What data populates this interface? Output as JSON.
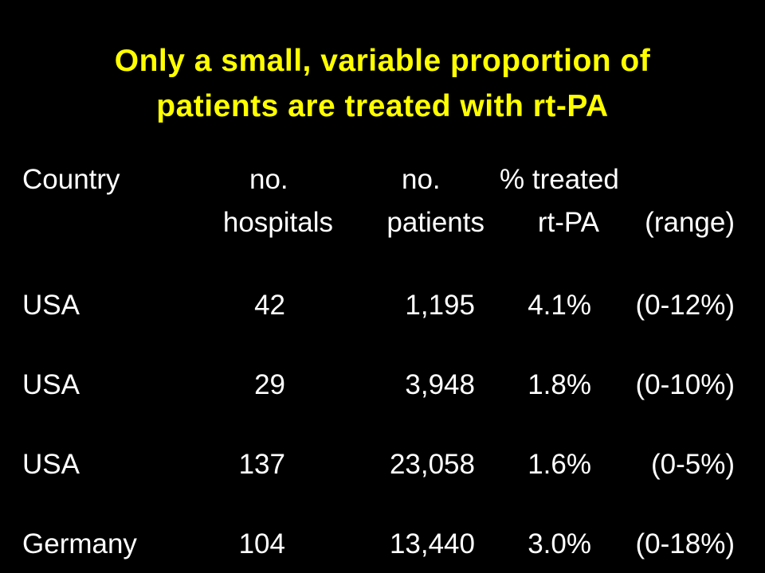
{
  "colors": {
    "background": "#000000",
    "title": "#FFFF00",
    "body_text": "#FFFFFF"
  },
  "title": {
    "line1": "Only a small, variable proportion of",
    "line2": "patients are treated with rt-PA"
  },
  "table": {
    "headers": {
      "country": "Country",
      "hospitals_1": "no.",
      "hospitals_2": "hospitals",
      "patients_1": "no.",
      "patients_2": "patients",
      "treated_1": "% treated",
      "treated_2": "rt-PA",
      "range": "(range)"
    },
    "rows": [
      {
        "country": "USA",
        "hospitals": "42",
        "patients": "1,195",
        "treated": "4.1%",
        "range": "(0-12%)"
      },
      {
        "country": "USA",
        "hospitals": "29",
        "patients": "3,948",
        "treated": "1.8%",
        "range": "(0-10%)"
      },
      {
        "country": "USA",
        "hospitals": "137",
        "patients": "23,058",
        "treated": "1.6%",
        "range": "(0-5%)"
      },
      {
        "country": "Germany",
        "hospitals": "104",
        "patients": "13,440",
        "treated": "3.0%",
        "range": "(0-18%)"
      }
    ]
  }
}
